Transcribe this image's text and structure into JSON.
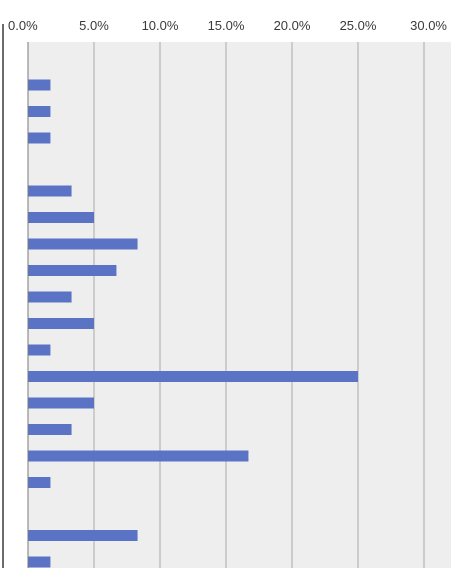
{
  "chart_data": {
    "type": "bar",
    "orientation": "horizontal",
    "title": "",
    "xlabel": "",
    "ylabel": "",
    "xlim": [
      0,
      30
    ],
    "x_ticks": [
      0,
      5,
      10,
      15,
      20,
      25,
      30
    ],
    "x_tick_labels": [
      "0.0%",
      "5.0%",
      "10.0%",
      "15.0%",
      "20.0%",
      "25.0%",
      "30.0%"
    ],
    "grid": true,
    "legend": "none",
    "bar_color": "#5b73c4",
    "plot_background": "#eeeeee",
    "gridline_color": "#a9a9a9",
    "rows": [
      {
        "value": 1.7
      },
      {
        "value": 1.7
      },
      {
        "value": 1.7
      },
      {
        "value": null
      },
      {
        "value": 3.3
      },
      {
        "value": 5.0
      },
      {
        "value": 8.3
      },
      {
        "value": 6.7
      },
      {
        "value": 3.3
      },
      {
        "value": 5.0
      },
      {
        "value": 1.7
      },
      {
        "value": 25.0
      },
      {
        "value": 5.0
      },
      {
        "value": 3.3
      },
      {
        "value": 16.7
      },
      {
        "value": 1.7
      },
      {
        "value": null
      },
      {
        "value": 8.3
      },
      {
        "value": 1.7
      }
    ]
  }
}
